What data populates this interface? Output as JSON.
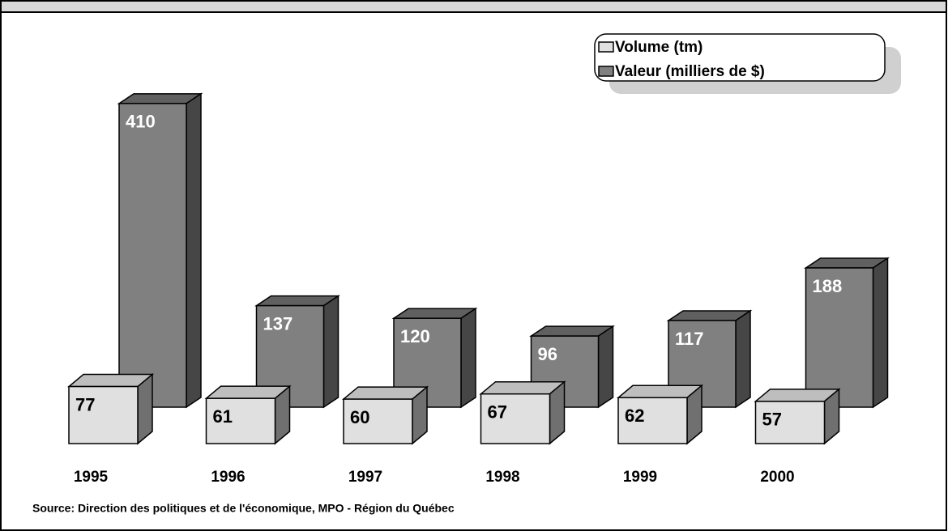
{
  "chart_data": {
    "type": "bar3d",
    "categories": [
      "1995",
      "1996",
      "1997",
      "1998",
      "1999",
      "2000"
    ],
    "series": [
      {
        "name": "Volume (tm)",
        "color": "#e0e0e0",
        "values": [
          77,
          61,
          60,
          67,
          62,
          57
        ]
      },
      {
        "name": "Valeur (milliers de $)",
        "color": "#808080",
        "values": [
          410,
          137,
          120,
          96,
          117,
          188
        ]
      }
    ],
    "source": "Source:  Direction des politiques et de l'économique, MPO - Région du Québec",
    "legend": "top-right"
  }
}
